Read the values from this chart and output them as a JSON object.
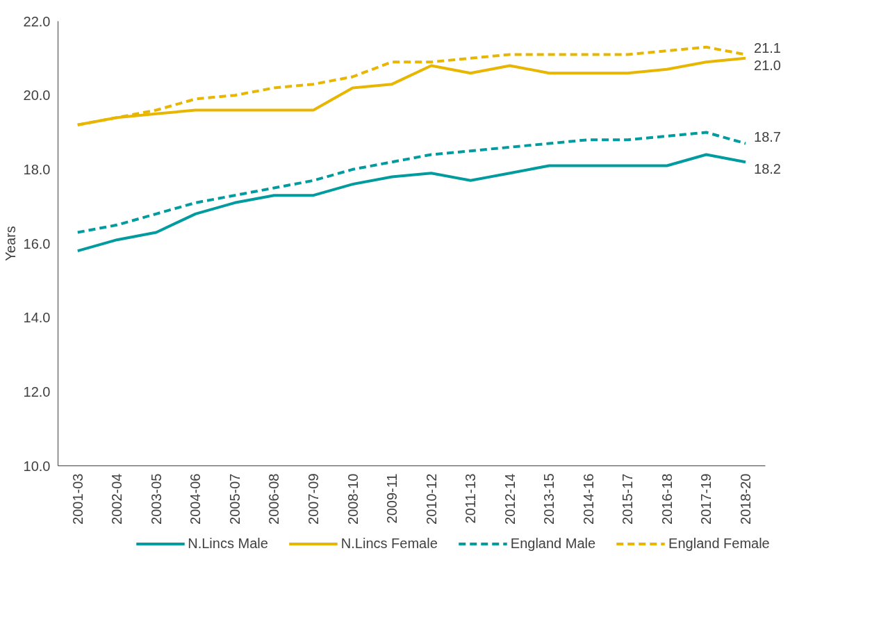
{
  "chart_data": {
    "type": "line",
    "ylabel": "Years",
    "categories": [
      "2001-03",
      "2002-04",
      "2003-05",
      "2004-06",
      "2005-07",
      "2006-08",
      "2007-09",
      "2008-10",
      "2009-11",
      "2010-12",
      "2011-13",
      "2012-14",
      "2013-15",
      "2014-16",
      "2015-17",
      "2016-18",
      "2017-19",
      "2018-20"
    ],
    "series": [
      {
        "name": "N.Lincs Male",
        "color": "#009b9e",
        "line_style": "solid",
        "values": [
          15.8,
          16.1,
          16.3,
          16.8,
          17.1,
          17.3,
          17.3,
          17.6,
          17.8,
          17.9,
          17.7,
          17.9,
          18.1,
          18.1,
          18.1,
          18.1,
          18.4,
          18.2
        ],
        "value_labels": [
          null,
          null,
          null,
          null,
          null,
          null,
          null,
          null,
          null,
          null,
          null,
          null,
          null,
          null,
          null,
          null,
          null,
          "18.2"
        ]
      },
      {
        "name": "N.Lincs Female",
        "color": "#e8b600",
        "line_style": "solid",
        "values": [
          19.2,
          19.4,
          19.5,
          19.6,
          19.6,
          19.6,
          19.6,
          20.2,
          20.3,
          20.8,
          20.6,
          20.8,
          20.6,
          20.6,
          20.6,
          20.7,
          20.9,
          21.0
        ],
        "value_labels": [
          null,
          null,
          null,
          null,
          null,
          null,
          null,
          null,
          null,
          null,
          null,
          null,
          null,
          null,
          null,
          null,
          null,
          "21.0"
        ]
      },
      {
        "name": "England Male",
        "color": "#009b9e",
        "line_style": "dashed",
        "values": [
          16.3,
          16.5,
          16.8,
          17.1,
          17.3,
          17.5,
          17.7,
          18.0,
          18.2,
          18.4,
          18.5,
          18.6,
          18.7,
          18.8,
          18.8,
          18.9,
          19.0,
          18.7
        ],
        "value_labels": [
          null,
          null,
          null,
          null,
          null,
          null,
          null,
          null,
          null,
          null,
          null,
          null,
          null,
          null,
          null,
          null,
          null,
          "18.7"
        ]
      },
      {
        "name": "England Female",
        "color": "#e8b600",
        "line_style": "dashed",
        "values": [
          19.2,
          19.4,
          19.6,
          19.9,
          20.0,
          20.2,
          20.3,
          20.5,
          20.9,
          20.9,
          21.0,
          21.1,
          21.1,
          21.1,
          21.1,
          21.2,
          21.3,
          21.1
        ],
        "value_labels": [
          null,
          null,
          null,
          null,
          null,
          null,
          null,
          null,
          null,
          null,
          null,
          null,
          null,
          null,
          null,
          null,
          null,
          "21.1"
        ]
      }
    ],
    "ylim": [
      10,
      22
    ],
    "yticks": [
      {
        "value": 10,
        "label": "10.0"
      },
      {
        "value": 12,
        "label": "12.0"
      },
      {
        "value": 14,
        "label": "14.0"
      },
      {
        "value": 16,
        "label": "16.0"
      },
      {
        "value": 18,
        "label": "18.0"
      },
      {
        "value": 20,
        "label": "20.0"
      },
      {
        "value": 22,
        "label": "22.0"
      }
    ],
    "grid": false,
    "legend": "bottom",
    "marker": "none"
  }
}
